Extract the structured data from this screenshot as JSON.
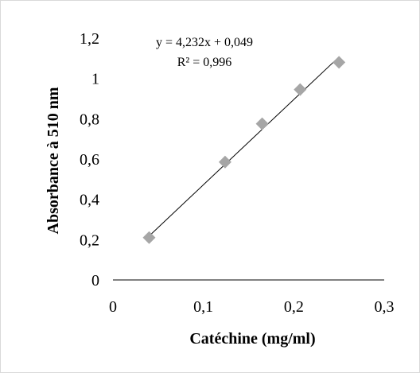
{
  "chart_data": {
    "type": "scatter",
    "title": "",
    "xlabel": "Catéchine (mg/ml)",
    "ylabel": "Absorbance à 510 nm",
    "xlim": [
      0,
      0.3
    ],
    "ylim": [
      0,
      1.2
    ],
    "x_ticks": [
      "0",
      "0,1",
      "0,2",
      "0,3"
    ],
    "y_ticks": [
      "0",
      "0,2",
      "0,4",
      "0,6",
      "0,8",
      "1",
      "1,2"
    ],
    "grid": false,
    "legend": "none",
    "series": [
      {
        "marker": "diamond",
        "color": "#a6a6a6",
        "points": [
          {
            "x": 0.04,
            "y": 0.21
          },
          {
            "x": 0.124,
            "y": 0.585
          },
          {
            "x": 0.165,
            "y": 0.775
          },
          {
            "x": 0.207,
            "y": 0.945
          },
          {
            "x": 0.25,
            "y": 1.08
          }
        ]
      }
    ],
    "trendline": {
      "type": "linear",
      "slope": 4.232,
      "intercept": 0.049,
      "x_range": [
        0.04,
        0.25
      ],
      "color": "#000000"
    },
    "annotations": {
      "equation": "y = 4,232x + 0,049",
      "r_squared": "R² = 0,996"
    },
    "axis_color": "#000000"
  }
}
